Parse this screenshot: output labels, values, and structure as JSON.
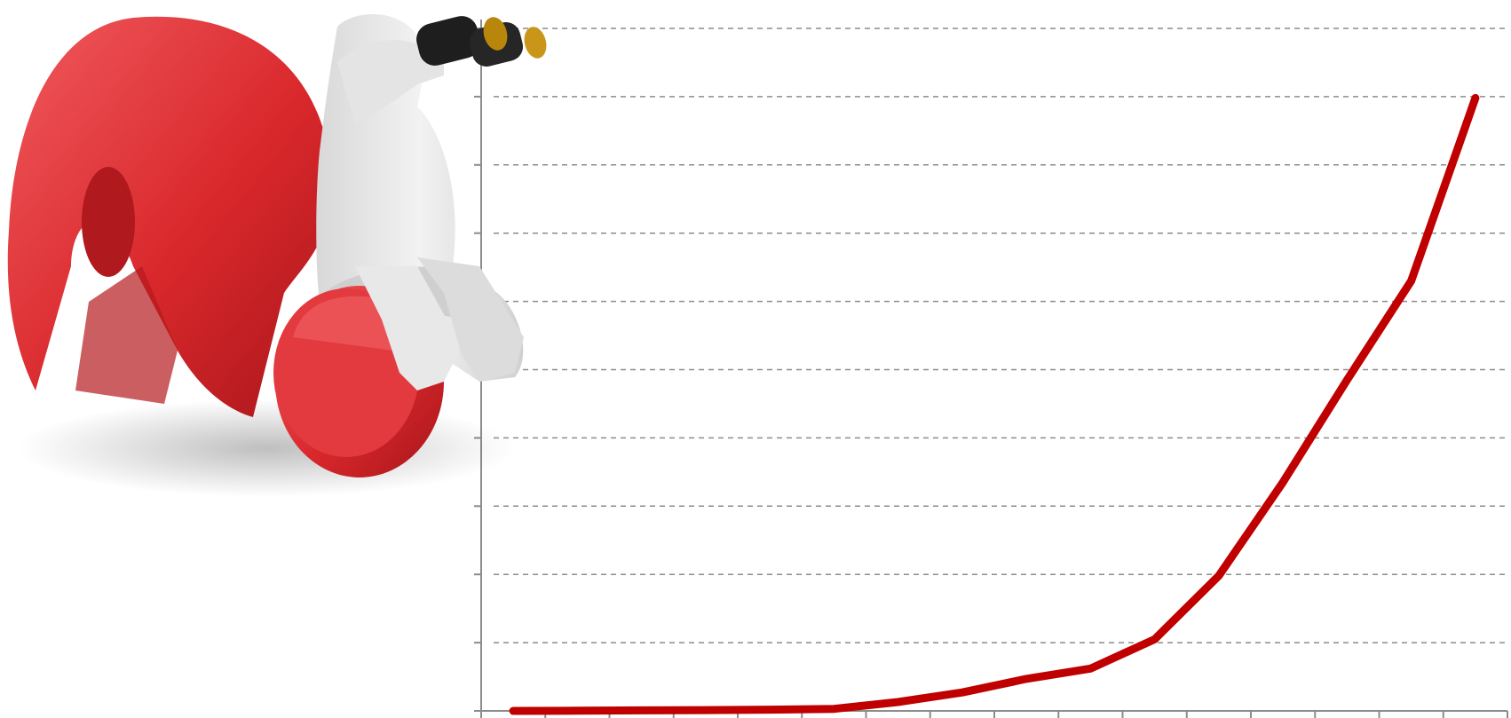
{
  "chart_data": {
    "type": "line",
    "title": "",
    "xlabel": "",
    "ylabel": "",
    "x": [
      1,
      2,
      3,
      4,
      5,
      6,
      7,
      8,
      9,
      10,
      11,
      12,
      13,
      14,
      15,
      16
    ],
    "series": [
      {
        "color": "#c00000",
        "values": [
          0,
          0.03,
          0.08,
          0.12,
          0.18,
          0.3,
          1.3,
          2.7,
          4.7,
          6.2,
          10.5,
          19.8,
          33.5,
          48.5,
          63.0,
          89.8
        ]
      }
    ],
    "xlim": [
      0.5,
      16.5
    ],
    "ylim": [
      0,
      100
    ],
    "y_gridlines": [
      10,
      20,
      30,
      40,
      50,
      60,
      70,
      80,
      90,
      100
    ],
    "y_ticks": [
      10,
      20,
      30,
      40,
      50,
      60,
      70,
      80,
      90,
      100
    ],
    "tick_labels_shown": false,
    "grid": true
  },
  "illustration": {
    "icon": "question-mark-figure-with-binoculars-icon",
    "colors": {
      "question_mark": "#d9282c",
      "figure": "#e6e6e6",
      "binoculars": "#1e1e1e"
    }
  }
}
